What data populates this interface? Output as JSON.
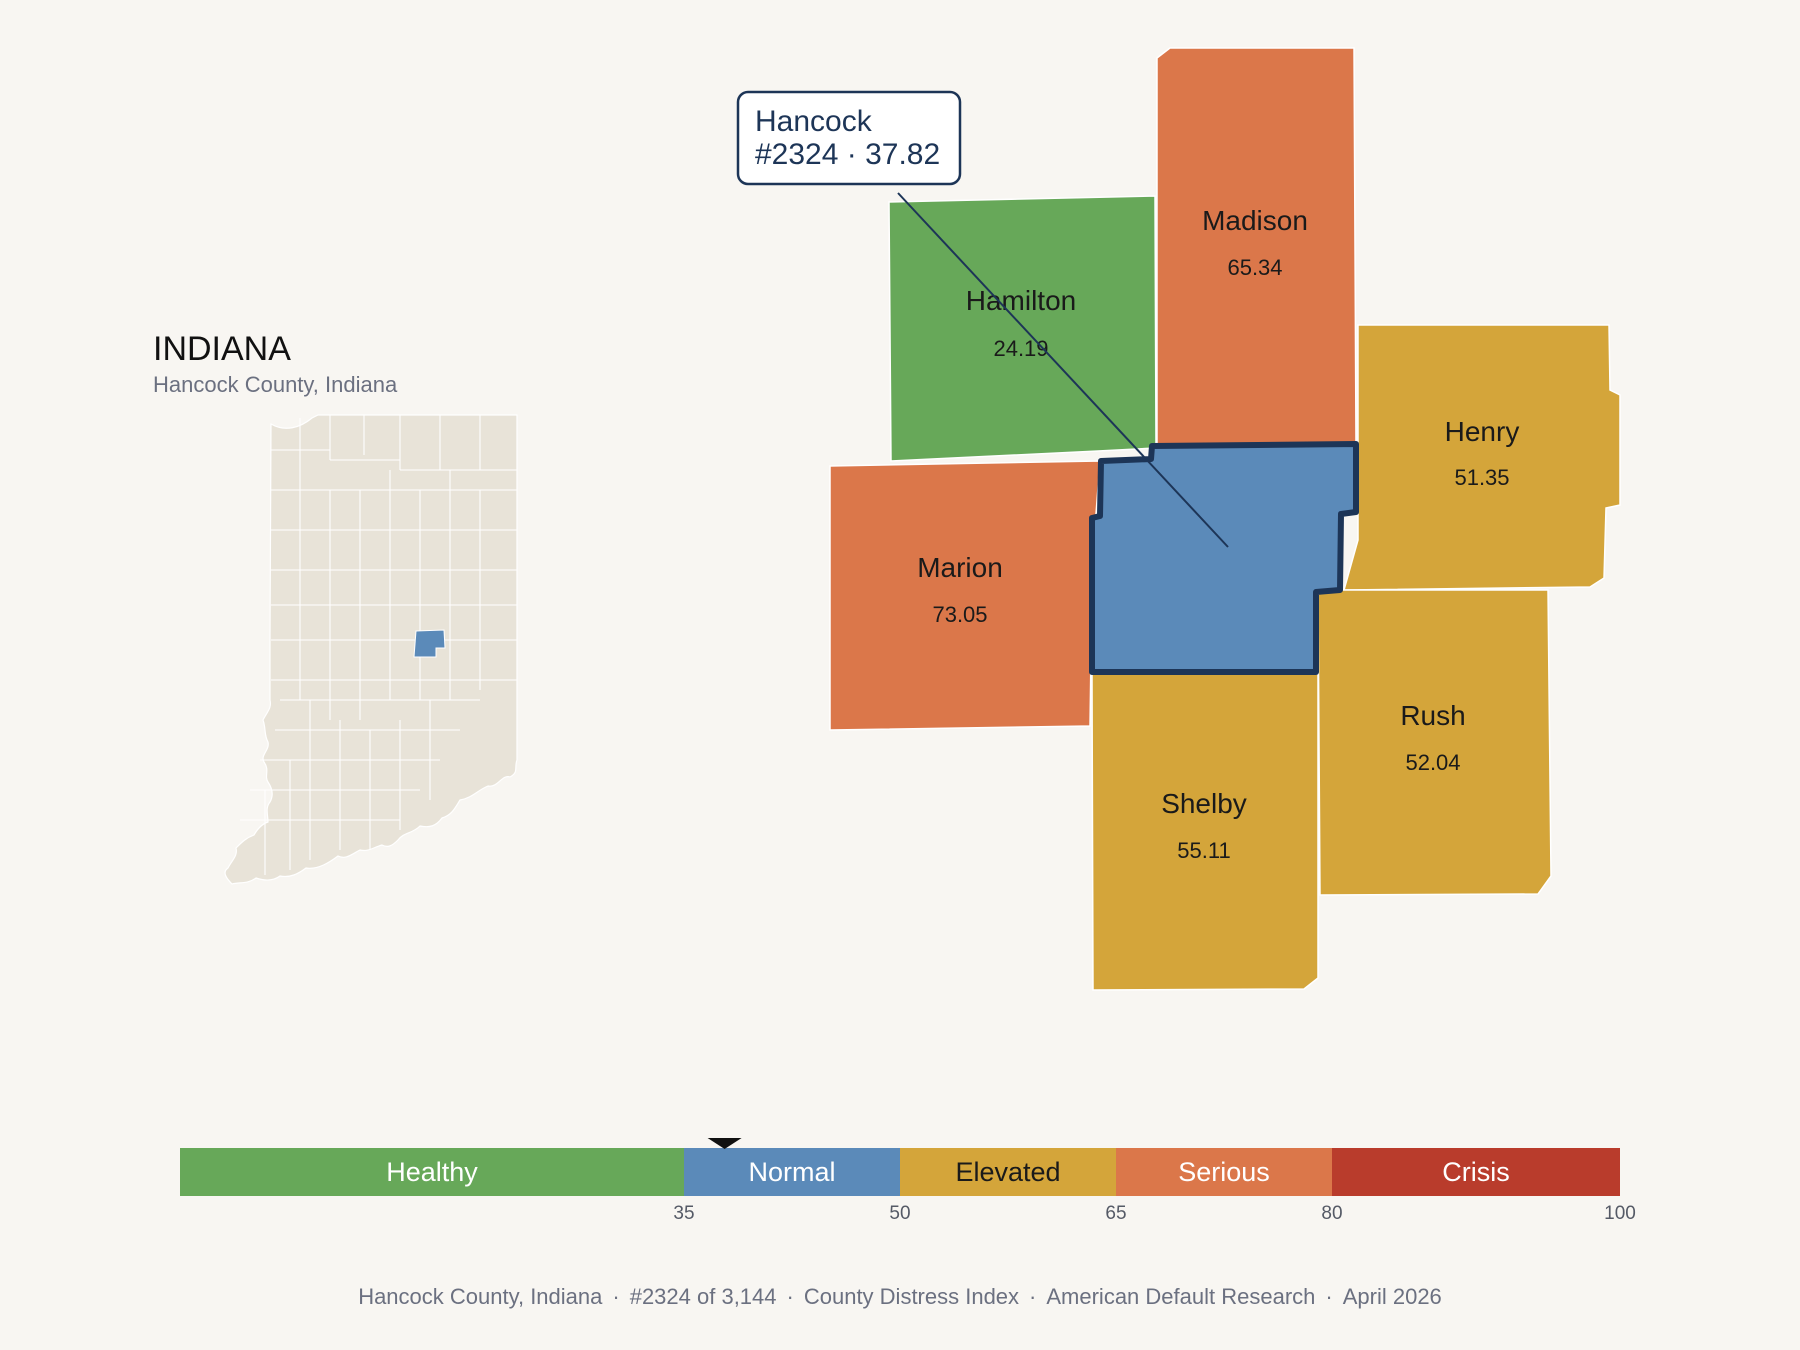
{
  "locator": {
    "state_title": "INDIANA",
    "subtitle": "Hancock County, Indiana",
    "highlight_color": "#5b8ab9",
    "base_color": "#e8e3d8"
  },
  "callout": {
    "name": "Hancock",
    "detail": "#2324 · 37.82"
  },
  "counties": [
    {
      "id": "hancock",
      "name": "Hancock",
      "score": 37.82,
      "color": "#5b8ab9",
      "focus": true
    },
    {
      "id": "hamilton",
      "name": "Hamilton",
      "score": "24.19",
      "color": "#67a859"
    },
    {
      "id": "madison",
      "name": "Madison",
      "score": "65.34",
      "color": "#db774a"
    },
    {
      "id": "henry",
      "name": "Henry",
      "score": "51.35",
      "color": "#d4a53a"
    },
    {
      "id": "marion",
      "name": "Marion",
      "score": "73.05",
      "color": "#db774a"
    },
    {
      "id": "rush",
      "name": "Rush",
      "score": "52.04",
      "color": "#d4a53a"
    },
    {
      "id": "shelby",
      "name": "Shelby",
      "score": "55.11",
      "color": "#d4a53a"
    }
  ],
  "scale": {
    "min": 0,
    "max": 100,
    "marker_value": 37.82,
    "bands": [
      {
        "label": "Healthy",
        "from": 0,
        "to": 35,
        "color": "#67a859",
        "text_color": "#ffffff"
      },
      {
        "label": "Normal",
        "from": 35,
        "to": 50,
        "color": "#5b8ab9",
        "text_color": "#ffffff"
      },
      {
        "label": "Elevated",
        "from": 50,
        "to": 65,
        "color": "#d4a53a",
        "text_color": "#1a1a1a"
      },
      {
        "label": "Serious",
        "from": 65,
        "to": 80,
        "color": "#db774a",
        "text_color": "#ffffff"
      },
      {
        "label": "Crisis",
        "from": 80,
        "to": 100,
        "color": "#b93c2c",
        "text_color": "#ffffff"
      }
    ],
    "ticks": [
      "35",
      "50",
      "65",
      "80",
      "100"
    ]
  },
  "footer": {
    "items": [
      "Hancock County, Indiana",
      "#2324 of 3,144",
      "County Distress Index",
      "American Default Research",
      "April 2026"
    ],
    "separator": "·"
  }
}
